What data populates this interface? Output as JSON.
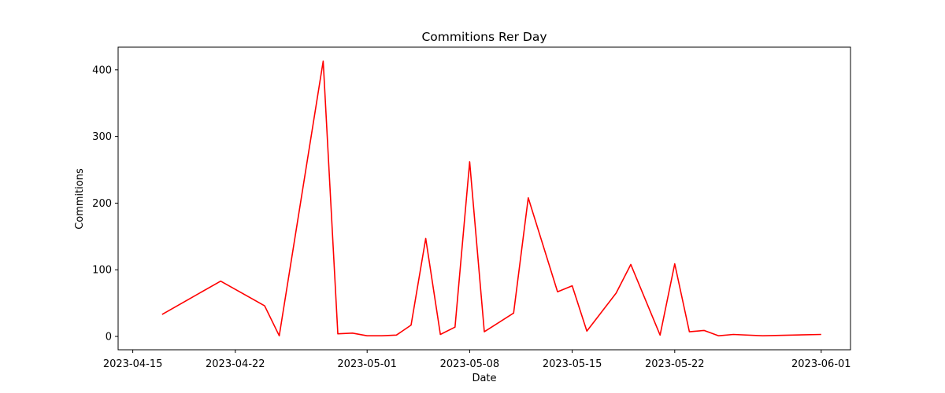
{
  "chart_data": {
    "type": "line",
    "title": "Commitions Rer Day",
    "xlabel": "Date",
    "ylabel": "Commitions",
    "x_ticks": [
      "2023-04-15",
      "2023-04-22",
      "2023-05-01",
      "2023-05-08",
      "2023-05-15",
      "2023-05-22",
      "2023-06-01"
    ],
    "y_ticks": [
      0,
      100,
      200,
      300,
      400
    ],
    "xlim": [
      "2023-04-14",
      "2023-06-03"
    ],
    "ylim": [
      -20,
      434
    ],
    "grid": false,
    "series": [
      {
        "color": "#ff0000",
        "x": [
          "2023-04-17",
          "2023-04-21",
          "2023-04-24",
          "2023-04-25",
          "2023-04-28",
          "2023-04-29",
          "2023-04-30",
          "2023-05-01",
          "2023-05-02",
          "2023-05-03",
          "2023-05-04",
          "2023-05-05",
          "2023-05-06",
          "2023-05-07",
          "2023-05-08",
          "2023-05-09",
          "2023-05-11",
          "2023-05-12",
          "2023-05-14",
          "2023-05-15",
          "2023-05-16",
          "2023-05-18",
          "2023-05-19",
          "2023-05-21",
          "2023-05-22",
          "2023-05-23",
          "2023-05-24",
          "2023-05-25",
          "2023-05-26",
          "2023-05-28",
          "2023-06-01"
        ],
        "y": [
          33,
          83,
          46,
          1,
          413,
          4,
          5,
          1,
          1,
          2,
          17,
          147,
          3,
          14,
          262,
          7,
          35,
          208,
          67,
          76,
          8,
          65,
          108,
          2,
          109,
          7,
          9,
          1,
          3,
          1,
          3
        ]
      }
    ]
  }
}
